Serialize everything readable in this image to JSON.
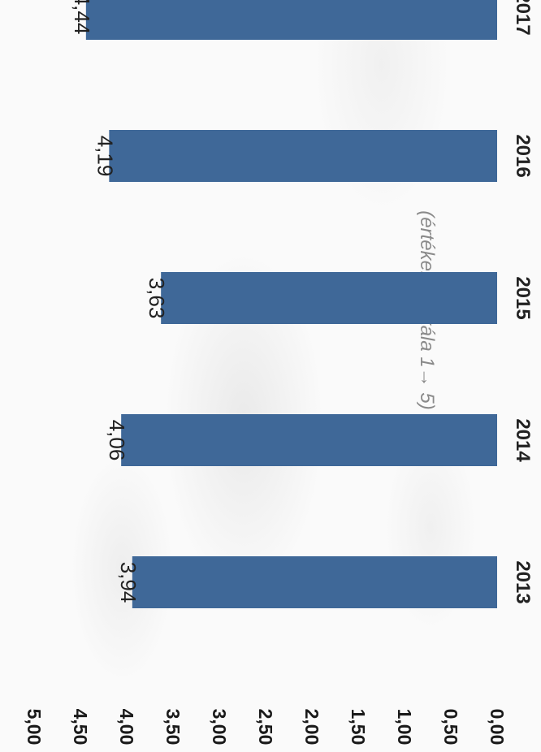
{
  "chart_data": {
    "type": "bar",
    "subtitle": "(értékelési skála 1→ 5)",
    "categories": [
      "2013",
      "2014",
      "2015",
      "2016",
      "2017"
    ],
    "values": [
      3.94,
      4.06,
      3.63,
      4.19,
      4.44
    ],
    "value_labels": [
      "3,94",
      "4,06",
      "3,63",
      "4,19",
      "4,44"
    ],
    "ylim": [
      0,
      5
    ],
    "yticks": [
      "0,00",
      "0,50",
      "1,00",
      "1,50",
      "2,00",
      "2,50",
      "3,00",
      "3,50",
      "4,00",
      "4,50",
      "5,00"
    ],
    "grid": false,
    "orientation": "rotated 90° clockwise",
    "bar_color": "#3f6898"
  }
}
